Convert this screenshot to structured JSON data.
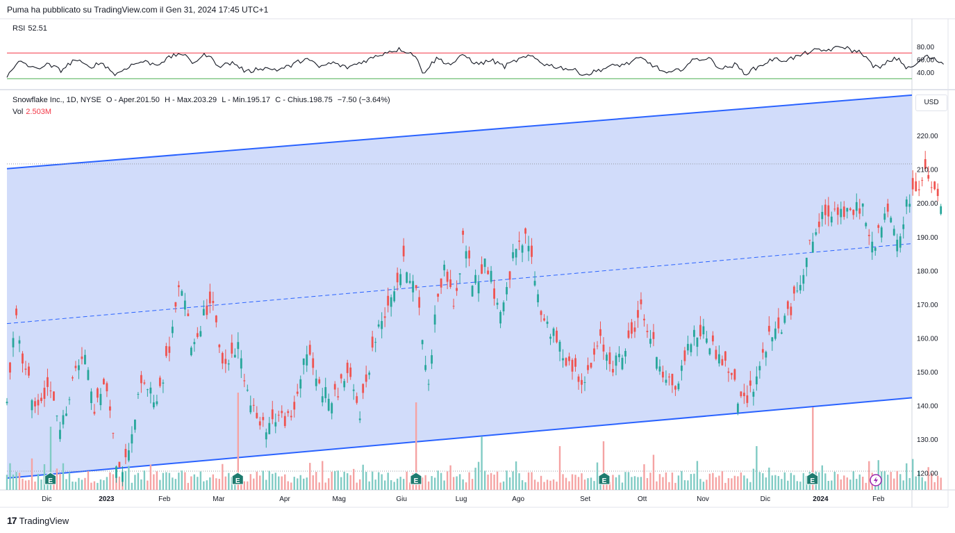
{
  "caption": "Puma ha pubblicato su TradingView.com il Gen 31, 2024 17:45 UTC+1",
  "rsi": {
    "label": "RSI",
    "value": "52.51",
    "ticks": [
      "80.00",
      "60.00",
      "40.00"
    ],
    "upper_band": 70,
    "lower_band": 30,
    "upper_band_color": "#f23645",
    "lower_band_color": "#4caf50",
    "line_color": "#131722"
  },
  "legend": {
    "symbol": "Snowflake Inc., 1D, NYSE",
    "open": "O - Aper.201.50",
    "high": "H - Max.203.29",
    "low": "L - Min.195.17",
    "close": "C - Chius.198.75",
    "change": "−7.50 (−3.64%)",
    "vol_label": "Vol",
    "vol_value": "2.503M"
  },
  "currency": "USD",
  "brand": "TradingView",
  "price_axis": [
    "220.00",
    "210.00",
    "200.00",
    "190.00",
    "180.00",
    "170.00",
    "160.00",
    "150.00",
    "140.00",
    "130.00",
    "120.00"
  ],
  "time_axis": [
    "Dic",
    "2023",
    "Feb",
    "Mar",
    "Apr",
    "Mag",
    "Giu",
    "Lug",
    "Ago",
    "Set",
    "Ott",
    "Nov",
    "Dic",
    "2024",
    "Feb"
  ],
  "colors": {
    "up": "#26a69a",
    "down": "#ef5350",
    "channel_line": "#2962ff",
    "channel_fill": "#d1dcfa",
    "vol_up": "#80cbc4",
    "vol_down": "#f5a3a3"
  },
  "earnings_marker": "E",
  "chart_data": {
    "type": "candlestick",
    "symbol": "Snowflake Inc.",
    "interval": "1D",
    "exchange": "NYSE",
    "ylim": [
      115,
      233
    ],
    "last_candle": {
      "open": 201.5,
      "high": 203.29,
      "low": 195.17,
      "close": 198.75
    },
    "high_reference": 211.6,
    "channel": {
      "upper": {
        "start": 210.2,
        "end": 232.0
      },
      "middle": {
        "start": 164.3,
        "end": 188.0
      },
      "lower": {
        "start": 118.5,
        "end": 142.3
      }
    },
    "price_path": [
      {
        "t": 0.0,
        "p": 141
      },
      {
        "t": 0.01,
        "p": 166
      },
      {
        "t": 0.02,
        "p": 150
      },
      {
        "t": 0.032,
        "p": 140
      },
      {
        "t": 0.045,
        "p": 146
      },
      {
        "t": 0.06,
        "p": 133
      },
      {
        "t": 0.075,
        "p": 150
      },
      {
        "t": 0.085,
        "p": 157
      },
      {
        "t": 0.095,
        "p": 139
      },
      {
        "t": 0.11,
        "p": 146
      },
      {
        "t": 0.12,
        "p": 124
      },
      {
        "t": 0.13,
        "p": 122
      },
      {
        "t": 0.15,
        "p": 148
      },
      {
        "t": 0.165,
        "p": 140
      },
      {
        "t": 0.18,
        "p": 158
      },
      {
        "t": 0.192,
        "p": 177
      },
      {
        "t": 0.205,
        "p": 157
      },
      {
        "t": 0.215,
        "p": 165
      },
      {
        "t": 0.225,
        "p": 172
      },
      {
        "t": 0.24,
        "p": 151
      },
      {
        "t": 0.255,
        "p": 158
      },
      {
        "t": 0.265,
        "p": 146
      },
      {
        "t": 0.28,
        "p": 133
      },
      {
        "t": 0.3,
        "p": 137
      },
      {
        "t": 0.315,
        "p": 135
      },
      {
        "t": 0.33,
        "p": 157
      },
      {
        "t": 0.345,
        "p": 146
      },
      {
        "t": 0.36,
        "p": 141
      },
      {
        "t": 0.375,
        "p": 150
      },
      {
        "t": 0.39,
        "p": 138
      },
      {
        "t": 0.405,
        "p": 158
      },
      {
        "t": 0.42,
        "p": 170
      },
      {
        "t": 0.44,
        "p": 183
      },
      {
        "t": 0.455,
        "p": 171
      },
      {
        "t": 0.465,
        "p": 145
      },
      {
        "t": 0.475,
        "p": 172
      },
      {
        "t": 0.485,
        "p": 181
      },
      {
        "t": 0.495,
        "p": 168
      },
      {
        "t": 0.505,
        "p": 191
      },
      {
        "t": 0.515,
        "p": 176
      },
      {
        "t": 0.53,
        "p": 183
      },
      {
        "t": 0.545,
        "p": 167
      },
      {
        "t": 0.56,
        "p": 184
      },
      {
        "t": 0.575,
        "p": 190
      },
      {
        "t": 0.59,
        "p": 168
      },
      {
        "t": 0.605,
        "p": 160
      },
      {
        "t": 0.62,
        "p": 153
      },
      {
        "t": 0.64,
        "p": 147
      },
      {
        "t": 0.655,
        "p": 159
      },
      {
        "t": 0.67,
        "p": 152
      },
      {
        "t": 0.685,
        "p": 157
      },
      {
        "t": 0.7,
        "p": 169
      },
      {
        "t": 0.71,
        "p": 161
      },
      {
        "t": 0.725,
        "p": 150
      },
      {
        "t": 0.74,
        "p": 145
      },
      {
        "t": 0.755,
        "p": 160
      },
      {
        "t": 0.77,
        "p": 162
      },
      {
        "t": 0.785,
        "p": 155
      },
      {
        "t": 0.8,
        "p": 150
      },
      {
        "t": 0.81,
        "p": 140
      },
      {
        "t": 0.825,
        "p": 146
      },
      {
        "t": 0.84,
        "p": 159
      },
      {
        "t": 0.855,
        "p": 163
      },
      {
        "t": 0.87,
        "p": 171
      },
      {
        "t": 0.885,
        "p": 186
      },
      {
        "t": 0.9,
        "p": 195
      },
      {
        "t": 0.915,
        "p": 199
      },
      {
        "t": 0.93,
        "p": 196
      },
      {
        "t": 0.945,
        "p": 200
      },
      {
        "t": 0.955,
        "p": 186
      },
      {
        "t": 0.965,
        "p": 193
      },
      {
        "t": 0.975,
        "p": 197
      },
      {
        "t": 0.985,
        "p": 188
      },
      {
        "t": 0.995,
        "p": 200
      },
      {
        "t": 1.005,
        "p": 205
      },
      {
        "t": 1.015,
        "p": 208
      },
      {
        "t": 1.025,
        "p": 203
      },
      {
        "t": 1.032,
        "p": 198.75
      }
    ],
    "rsi_path": [
      {
        "t": 0.0,
        "v": 33
      },
      {
        "t": 0.015,
        "v": 58
      },
      {
        "t": 0.03,
        "v": 45
      },
      {
        "t": 0.045,
        "v": 52
      },
      {
        "t": 0.06,
        "v": 43
      },
      {
        "t": 0.075,
        "v": 60
      },
      {
        "t": 0.09,
        "v": 48
      },
      {
        "t": 0.105,
        "v": 55
      },
      {
        "t": 0.12,
        "v": 36
      },
      {
        "t": 0.135,
        "v": 50
      },
      {
        "t": 0.15,
        "v": 57
      },
      {
        "t": 0.165,
        "v": 52
      },
      {
        "t": 0.18,
        "v": 63
      },
      {
        "t": 0.192,
        "v": 70
      },
      {
        "t": 0.205,
        "v": 55
      },
      {
        "t": 0.22,
        "v": 68
      },
      {
        "t": 0.235,
        "v": 50
      },
      {
        "t": 0.25,
        "v": 55
      },
      {
        "t": 0.265,
        "v": 40
      },
      {
        "t": 0.28,
        "v": 47
      },
      {
        "t": 0.3,
        "v": 44
      },
      {
        "t": 0.315,
        "v": 51
      },
      {
        "t": 0.33,
        "v": 62
      },
      {
        "t": 0.345,
        "v": 48
      },
      {
        "t": 0.36,
        "v": 55
      },
      {
        "t": 0.375,
        "v": 47
      },
      {
        "t": 0.39,
        "v": 55
      },
      {
        "t": 0.405,
        "v": 63
      },
      {
        "t": 0.42,
        "v": 72
      },
      {
        "t": 0.435,
        "v": 76
      },
      {
        "t": 0.45,
        "v": 68
      },
      {
        "t": 0.46,
        "v": 39
      },
      {
        "t": 0.475,
        "v": 62
      },
      {
        "t": 0.49,
        "v": 52
      },
      {
        "t": 0.505,
        "v": 67
      },
      {
        "t": 0.52,
        "v": 52
      },
      {
        "t": 0.535,
        "v": 59
      },
      {
        "t": 0.55,
        "v": 49
      },
      {
        "t": 0.565,
        "v": 60
      },
      {
        "t": 0.58,
        "v": 65
      },
      {
        "t": 0.595,
        "v": 52
      },
      {
        "t": 0.61,
        "v": 48
      },
      {
        "t": 0.625,
        "v": 44
      },
      {
        "t": 0.64,
        "v": 36
      },
      {
        "t": 0.655,
        "v": 44
      },
      {
        "t": 0.67,
        "v": 50
      },
      {
        "t": 0.685,
        "v": 53
      },
      {
        "t": 0.7,
        "v": 62
      },
      {
        "t": 0.715,
        "v": 50
      },
      {
        "t": 0.73,
        "v": 37
      },
      {
        "t": 0.745,
        "v": 45
      },
      {
        "t": 0.76,
        "v": 60
      },
      {
        "t": 0.775,
        "v": 62
      },
      {
        "t": 0.79,
        "v": 45
      },
      {
        "t": 0.805,
        "v": 52
      },
      {
        "t": 0.815,
        "v": 38
      },
      {
        "t": 0.83,
        "v": 48
      },
      {
        "t": 0.845,
        "v": 60
      },
      {
        "t": 0.86,
        "v": 59
      },
      {
        "t": 0.875,
        "v": 65
      },
      {
        "t": 0.89,
        "v": 74
      },
      {
        "t": 0.9,
        "v": 73
      },
      {
        "t": 0.915,
        "v": 77
      },
      {
        "t": 0.925,
        "v": 80
      },
      {
        "t": 0.935,
        "v": 73
      },
      {
        "t": 0.945,
        "v": 71
      },
      {
        "t": 0.955,
        "v": 52
      },
      {
        "t": 0.965,
        "v": 46
      },
      {
        "t": 0.975,
        "v": 58
      },
      {
        "t": 0.985,
        "v": 62
      },
      {
        "t": 0.995,
        "v": 45
      },
      {
        "t": 1.005,
        "v": 52
      },
      {
        "t": 1.015,
        "v": 65
      },
      {
        "t": 1.025,
        "v": 60
      },
      {
        "t": 1.035,
        "v": 54
      }
    ],
    "volume_spikes": [
      {
        "t": 0.255,
        "v": 1.0,
        "dir": "down"
      },
      {
        "t": 0.452,
        "v": 0.9,
        "dir": "down"
      },
      {
        "t": 0.89,
        "v": 0.85,
        "dir": "down"
      },
      {
        "t": 0.525,
        "v": 0.55,
        "dir": "up"
      },
      {
        "t": 0.66,
        "v": 0.5,
        "dir": "down"
      },
      {
        "t": 0.83,
        "v": 0.45,
        "dir": "up"
      },
      {
        "t": 0.048,
        "v": 0.65,
        "dir": "up"
      },
      {
        "t": 0.61,
        "v": 0.45,
        "dir": "down"
      }
    ],
    "earnings_positions": [
      0.048,
      0.255,
      0.452,
      0.66,
      0.89
    ]
  }
}
